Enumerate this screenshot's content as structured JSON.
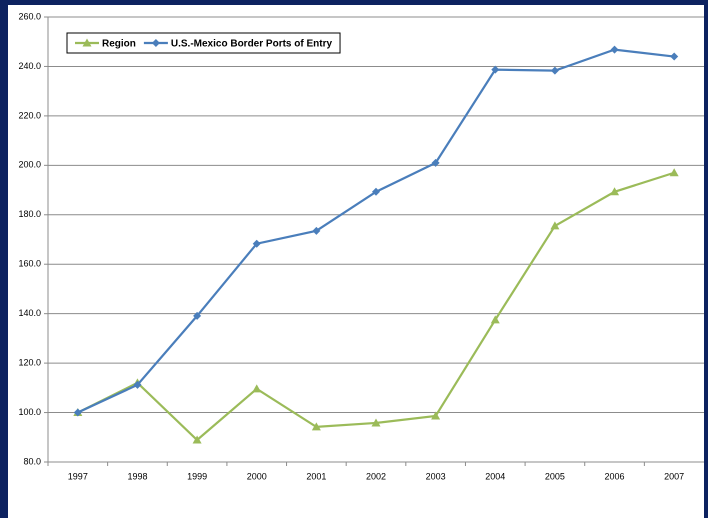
{
  "chart_data": {
    "type": "line",
    "categories": [
      "1997",
      "1998",
      "1999",
      "2000",
      "2001",
      "2002",
      "2003",
      "2004",
      "2005",
      "2006",
      "2007"
    ],
    "series": [
      {
        "name": "Region",
        "color": "#9bbb59",
        "marker": "triangle",
        "values": [
          100.0,
          112.0,
          88.9,
          109.6,
          94.2,
          95.8,
          98.6,
          137.5,
          175.5,
          189.3,
          197.0
        ]
      },
      {
        "name": "U.S.-Mexico Border Ports of Entry",
        "color": "#4a7ebb",
        "marker": "diamond",
        "values": [
          100.0,
          111.2,
          139.1,
          168.3,
          173.5,
          189.3,
          201.0,
          238.7,
          238.3,
          246.8,
          244.0
        ]
      }
    ],
    "ylim": [
      80,
      260
    ],
    "yticks": [
      {
        "value": 80,
        "label": "80.0"
      },
      {
        "value": 100,
        "label": "100.0"
      },
      {
        "value": 120,
        "label": "120.0"
      },
      {
        "value": 140,
        "label": "140.0"
      },
      {
        "value": 160,
        "label": "160.0"
      },
      {
        "value": 180,
        "label": "180.0"
      },
      {
        "value": 200,
        "label": "200.0"
      },
      {
        "value": 220,
        "label": "220.0"
      },
      {
        "value": 240,
        "label": "240.0"
      },
      {
        "value": 260,
        "label": "260.0"
      }
    ],
    "grid": true,
    "legend": "top-left"
  }
}
